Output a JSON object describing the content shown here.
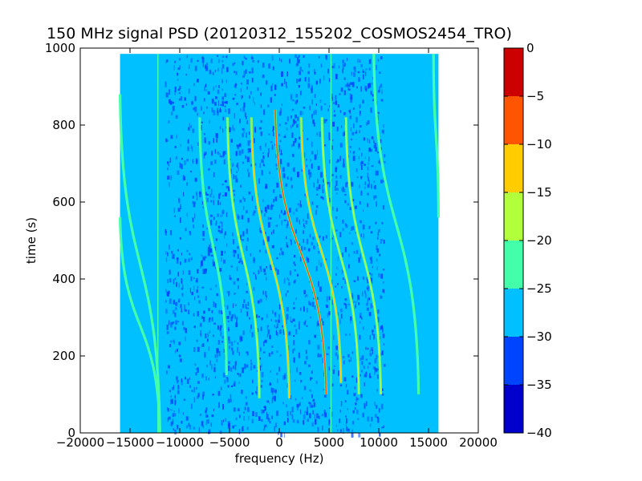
{
  "chart_data": {
    "type": "heatmap",
    "title": "150 MHz signal PSD (20120312_155202_COSMOS2454_TRO)",
    "xlabel": "frequency (Hz)",
    "ylabel": "time (s)",
    "xlim": [
      -20000,
      20000
    ],
    "ylim": [
      0,
      1000
    ],
    "x_ticks": [
      -20000,
      -15000,
      -10000,
      -5000,
      0,
      5000,
      10000,
      15000,
      20000
    ],
    "x_tick_labels": [
      "−20000",
      "−15000",
      "−10000",
      "−5000",
      "0",
      "5000",
      "10000",
      "15000",
      "20000"
    ],
    "y_ticks": [
      0,
      200,
      400,
      600,
      800,
      1000
    ],
    "y_tick_labels": [
      "0",
      "200",
      "400",
      "600",
      "800",
      "1000"
    ],
    "data_extent": {
      "freq": [
        -16000,
        16000
      ],
      "time": [
        0,
        985
      ]
    },
    "colorbar": {
      "min": -40,
      "max": 0,
      "levels": [
        -40,
        -35,
        -30,
        -25,
        -20,
        -15,
        -10,
        -5,
        0
      ],
      "tick_labels": [
        "−40",
        "−35",
        "−30",
        "−25",
        "−20",
        "−15",
        "−10",
        "−5",
        "0"
      ],
      "colors": [
        "#0000cc",
        "#0044ff",
        "#00c0ff",
        "#44ffaa",
        "#b2ff3c",
        "#ffcc00",
        "#ff5500",
        "#cc0000"
      ]
    },
    "background_level": -28,
    "noise_band": {
      "freq": [
        -11500,
        10500
      ],
      "level": -33
    },
    "vertical_lines": [
      {
        "freq": -12200,
        "level": -23
      },
      {
        "freq": 5200,
        "level": -24
      }
    ],
    "tracks": [
      {
        "freq_at_top": -16000,
        "freq_at_bottom": -12000,
        "time_top": 880,
        "time_bottom": 0,
        "level": -22
      },
      {
        "freq_at_top": -16000,
        "freq_at_bottom": -12000,
        "time_top": 560,
        "time_bottom": 0,
        "level": -22
      },
      {
        "freq_at_top": -8000,
        "freq_at_bottom": -5300,
        "time_top": 820,
        "time_bottom": 150,
        "level": -24
      },
      {
        "freq_at_top": -5200,
        "freq_at_bottom": -2000,
        "time_top": 820,
        "time_bottom": 90,
        "level": -18
      },
      {
        "freq_at_top": -2800,
        "freq_at_bottom": 1000,
        "time_top": 820,
        "time_bottom": 90,
        "level": -14
      },
      {
        "freq_at_top": -400,
        "freq_at_bottom": 4700,
        "time_top": 840,
        "time_bottom": 100,
        "level": -8
      },
      {
        "freq_at_top": 2200,
        "freq_at_bottom": 6200,
        "time_top": 820,
        "time_bottom": 130,
        "level": -14
      },
      {
        "freq_at_top": 4300,
        "freq_at_bottom": 8000,
        "time_top": 820,
        "time_bottom": 100,
        "level": -17
      },
      {
        "freq_at_top": 6700,
        "freq_at_bottom": 10200,
        "time_top": 820,
        "time_bottom": 100,
        "level": -18
      },
      {
        "freq_at_top": 9500,
        "freq_at_bottom": 14000,
        "time_top": 985,
        "time_bottom": 100,
        "level": -22
      },
      {
        "freq_at_top": 15500,
        "freq_at_bottom": 16000,
        "time_top": 985,
        "time_bottom": 560,
        "level": -22
      }
    ]
  }
}
